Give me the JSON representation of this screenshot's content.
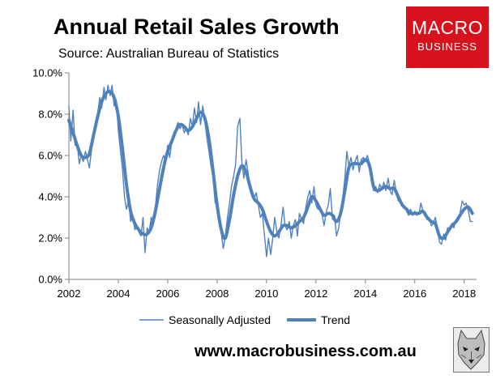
{
  "header": {
    "title": "Annual Retail Sales Growth",
    "subtitle": "Source: Australian Bureau of Statistics"
  },
  "logo": {
    "line1": "MACRO",
    "line2": "BUSINESS",
    "bg_color": "#d7121c"
  },
  "footer": {
    "website": "www.macrobusiness.com.au",
    "mascot_icon": "wolf-icon"
  },
  "chart_data": {
    "type": "line",
    "title": "Annual Retail Sales Growth",
    "subtitle": "Source: Australian Bureau of Statistics",
    "xlabel": "",
    "ylabel": "",
    "xlim": [
      2002,
      2018.5
    ],
    "ylim": [
      0,
      10
    ],
    "x_ticks": [
      2002,
      2004,
      2006,
      2008,
      2010,
      2012,
      2014,
      2016,
      2018
    ],
    "x_tick_labels": [
      "2002",
      "2004",
      "2006",
      "2008",
      "2010",
      "2012",
      "2014",
      "2016",
      "2018"
    ],
    "y_ticks": [
      0,
      2,
      4,
      6,
      8,
      10
    ],
    "y_tick_labels": [
      "0.0%",
      "2.0%",
      "4.0%",
      "6.0%",
      "8.0%",
      "10.0%"
    ],
    "grid": false,
    "legend_position": "bottom",
    "series": [
      {
        "name": "Seasonally Adjusted",
        "color": "#4f81bd",
        "style": "thin",
        "points": [
          [
            2002.0,
            8.4
          ],
          [
            2002.08,
            6.7
          ],
          [
            2002.17,
            8.2
          ],
          [
            2002.25,
            6.5
          ],
          [
            2002.33,
            6.6
          ],
          [
            2002.42,
            5.6
          ],
          [
            2002.5,
            6.0
          ],
          [
            2002.58,
            5.7
          ],
          [
            2002.67,
            6.2
          ],
          [
            2002.75,
            5.8
          ],
          [
            2002.83,
            5.4
          ],
          [
            2002.92,
            6.3
          ],
          [
            2003.0,
            7.0
          ],
          [
            2003.08,
            7.6
          ],
          [
            2003.17,
            8.1
          ],
          [
            2003.25,
            8.8
          ],
          [
            2003.33,
            8.3
          ],
          [
            2003.42,
            9.3
          ],
          [
            2003.5,
            8.7
          ],
          [
            2003.58,
            9.4
          ],
          [
            2003.67,
            8.9
          ],
          [
            2003.75,
            9.4
          ],
          [
            2003.83,
            8.4
          ],
          [
            2003.92,
            8.7
          ],
          [
            2004.0,
            7.2
          ],
          [
            2004.08,
            6.3
          ],
          [
            2004.17,
            5.3
          ],
          [
            2004.25,
            4.0
          ],
          [
            2004.33,
            3.4
          ],
          [
            2004.42,
            3.8
          ],
          [
            2004.5,
            2.8
          ],
          [
            2004.58,
            3.1
          ],
          [
            2004.67,
            2.4
          ],
          [
            2004.75,
            2.6
          ],
          [
            2004.83,
            2.3
          ],
          [
            2004.92,
            2.1
          ],
          [
            2005.0,
            3.0
          ],
          [
            2005.08,
            1.3
          ],
          [
            2005.17,
            2.5
          ],
          [
            2005.25,
            2.3
          ],
          [
            2005.33,
            3.0
          ],
          [
            2005.42,
            2.7
          ],
          [
            2005.5,
            3.5
          ],
          [
            2005.58,
            4.5
          ],
          [
            2005.67,
            5.3
          ],
          [
            2005.75,
            5.7
          ],
          [
            2005.83,
            6.0
          ],
          [
            2005.92,
            5.7
          ],
          [
            2006.0,
            6.5
          ],
          [
            2006.08,
            5.9
          ],
          [
            2006.17,
            6.7
          ],
          [
            2006.25,
            6.9
          ],
          [
            2006.33,
            7.3
          ],
          [
            2006.42,
            7.6
          ],
          [
            2006.5,
            7.3
          ],
          [
            2006.58,
            7.5
          ],
          [
            2006.67,
            7.1
          ],
          [
            2006.75,
            7.3
          ],
          [
            2006.83,
            7.0
          ],
          [
            2006.92,
            7.8
          ],
          [
            2007.0,
            7.4
          ],
          [
            2007.08,
            8.3
          ],
          [
            2007.17,
            7.6
          ],
          [
            2007.25,
            8.6
          ],
          [
            2007.33,
            7.5
          ],
          [
            2007.42,
            8.4
          ],
          [
            2007.5,
            7.7
          ],
          [
            2007.58,
            6.9
          ],
          [
            2007.67,
            6.2
          ],
          [
            2007.75,
            5.5
          ],
          [
            2007.83,
            5.0
          ],
          [
            2007.92,
            3.7
          ],
          [
            2008.0,
            3.6
          ],
          [
            2008.08,
            2.8
          ],
          [
            2008.17,
            2.2
          ],
          [
            2008.25,
            1.5
          ],
          [
            2008.33,
            2.1
          ],
          [
            2008.42,
            3.0
          ],
          [
            2008.5,
            3.7
          ],
          [
            2008.58,
            4.5
          ],
          [
            2008.67,
            5.0
          ],
          [
            2008.75,
            5.6
          ],
          [
            2008.83,
            7.4
          ],
          [
            2008.92,
            7.8
          ],
          [
            2009.0,
            5.7
          ],
          [
            2009.08,
            4.9
          ],
          [
            2009.17,
            5.8
          ],
          [
            2009.25,
            5.2
          ],
          [
            2009.33,
            4.5
          ],
          [
            2009.42,
            4.0
          ],
          [
            2009.5,
            3.9
          ],
          [
            2009.58,
            4.2
          ],
          [
            2009.67,
            3.6
          ],
          [
            2009.75,
            3.0
          ],
          [
            2009.83,
            3.2
          ],
          [
            2009.92,
            2.1
          ],
          [
            2010.0,
            1.1
          ],
          [
            2010.08,
            2.0
          ],
          [
            2010.17,
            1.2
          ],
          [
            2010.25,
            2.0
          ],
          [
            2010.33,
            3.0
          ],
          [
            2010.42,
            2.3
          ],
          [
            2010.5,
            2.0
          ],
          [
            2010.58,
            2.6
          ],
          [
            2010.67,
            3.5
          ],
          [
            2010.75,
            2.6
          ],
          [
            2010.83,
            2.4
          ],
          [
            2010.92,
            2.8
          ],
          [
            2011.0,
            2.0
          ],
          [
            2011.08,
            2.6
          ],
          [
            2011.17,
            2.9
          ],
          [
            2011.25,
            2.1
          ],
          [
            2011.33,
            3.2
          ],
          [
            2011.42,
            2.9
          ],
          [
            2011.5,
            2.7
          ],
          [
            2011.58,
            3.4
          ],
          [
            2011.67,
            4.0
          ],
          [
            2011.75,
            4.3
          ],
          [
            2011.83,
            3.7
          ],
          [
            2011.92,
            4.5
          ],
          [
            2012.0,
            3.6
          ],
          [
            2012.08,
            3.4
          ],
          [
            2012.17,
            3.5
          ],
          [
            2012.25,
            3.1
          ],
          [
            2012.33,
            2.6
          ],
          [
            2012.42,
            3.3
          ],
          [
            2012.5,
            3.6
          ],
          [
            2012.58,
            4.4
          ],
          [
            2012.67,
            2.9
          ],
          [
            2012.75,
            3.1
          ],
          [
            2012.83,
            2.1
          ],
          [
            2012.92,
            2.5
          ],
          [
            2013.0,
            3.2
          ],
          [
            2013.08,
            3.9
          ],
          [
            2013.17,
            4.9
          ],
          [
            2013.25,
            6.2
          ],
          [
            2013.33,
            5.5
          ],
          [
            2013.42,
            5.9
          ],
          [
            2013.5,
            5.3
          ],
          [
            2013.58,
            5.7
          ],
          [
            2013.67,
            6.0
          ],
          [
            2013.75,
            5.2
          ],
          [
            2013.83,
            5.8
          ],
          [
            2013.92,
            5.9
          ],
          [
            2014.0,
            5.7
          ],
          [
            2014.08,
            6.0
          ],
          [
            2014.17,
            5.6
          ],
          [
            2014.25,
            4.9
          ],
          [
            2014.33,
            4.3
          ],
          [
            2014.42,
            4.5
          ],
          [
            2014.5,
            4.2
          ],
          [
            2014.58,
            4.6
          ],
          [
            2014.67,
            4.4
          ],
          [
            2014.75,
            4.7
          ],
          [
            2014.83,
            4.3
          ],
          [
            2014.92,
            4.9
          ],
          [
            2015.0,
            4.3
          ],
          [
            2015.08,
            4.1
          ],
          [
            2015.17,
            4.8
          ],
          [
            2015.25,
            4.2
          ],
          [
            2015.33,
            3.8
          ],
          [
            2015.42,
            3.9
          ],
          [
            2015.5,
            3.6
          ],
          [
            2015.58,
            3.5
          ],
          [
            2015.67,
            3.3
          ],
          [
            2015.75,
            3.1
          ],
          [
            2015.83,
            3.4
          ],
          [
            2015.92,
            3.1
          ],
          [
            2016.0,
            3.3
          ],
          [
            2016.08,
            3.1
          ],
          [
            2016.17,
            3.2
          ],
          [
            2016.25,
            3.7
          ],
          [
            2016.33,
            3.3
          ],
          [
            2016.42,
            3.1
          ],
          [
            2016.5,
            2.9
          ],
          [
            2016.58,
            3.0
          ],
          [
            2016.67,
            2.6
          ],
          [
            2016.75,
            2.7
          ],
          [
            2016.83,
            3.0
          ],
          [
            2016.92,
            2.5
          ],
          [
            2017.0,
            1.8
          ],
          [
            2017.08,
            1.7
          ],
          [
            2017.17,
            2.2
          ],
          [
            2017.25,
            1.9
          ],
          [
            2017.33,
            2.5
          ],
          [
            2017.42,
            2.4
          ],
          [
            2017.5,
            2.7
          ],
          [
            2017.58,
            2.5
          ],
          [
            2017.67,
            2.9
          ],
          [
            2017.75,
            3.0
          ],
          [
            2017.83,
            3.2
          ],
          [
            2017.92,
            3.8
          ],
          [
            2018.0,
            3.6
          ],
          [
            2018.08,
            3.7
          ],
          [
            2018.17,
            3.3
          ],
          [
            2018.25,
            2.8
          ],
          [
            2018.33,
            2.8
          ]
        ]
      },
      {
        "name": "Trend",
        "color": "#4f81bd",
        "style": "thick",
        "points": [
          [
            2002.0,
            7.7
          ],
          [
            2002.17,
            7.1
          ],
          [
            2002.33,
            6.5
          ],
          [
            2002.5,
            6.0
          ],
          [
            2002.67,
            5.9
          ],
          [
            2002.83,
            6.1
          ],
          [
            2003.0,
            7.0
          ],
          [
            2003.17,
            7.9
          ],
          [
            2003.33,
            8.6
          ],
          [
            2003.5,
            9.0
          ],
          [
            2003.67,
            9.1
          ],
          [
            2003.83,
            8.8
          ],
          [
            2004.0,
            7.9
          ],
          [
            2004.17,
            6.3
          ],
          [
            2004.33,
            4.6
          ],
          [
            2004.5,
            3.3
          ],
          [
            2004.67,
            2.7
          ],
          [
            2004.83,
            2.4
          ],
          [
            2005.0,
            2.2
          ],
          [
            2005.17,
            2.2
          ],
          [
            2005.33,
            2.5
          ],
          [
            2005.5,
            3.3
          ],
          [
            2005.67,
            4.4
          ],
          [
            2005.83,
            5.4
          ],
          [
            2006.0,
            6.2
          ],
          [
            2006.17,
            6.7
          ],
          [
            2006.33,
            7.2
          ],
          [
            2006.5,
            7.5
          ],
          [
            2006.67,
            7.4
          ],
          [
            2006.83,
            7.2
          ],
          [
            2007.0,
            7.4
          ],
          [
            2007.17,
            7.8
          ],
          [
            2007.33,
            8.1
          ],
          [
            2007.5,
            7.8
          ],
          [
            2007.67,
            6.8
          ],
          [
            2007.83,
            5.3
          ],
          [
            2008.0,
            3.6
          ],
          [
            2008.17,
            2.4
          ],
          [
            2008.33,
            2.0
          ],
          [
            2008.5,
            2.9
          ],
          [
            2008.67,
            4.1
          ],
          [
            2008.83,
            5.0
          ],
          [
            2009.0,
            5.5
          ],
          [
            2009.17,
            5.2
          ],
          [
            2009.33,
            4.5
          ],
          [
            2009.5,
            3.9
          ],
          [
            2009.67,
            3.7
          ],
          [
            2009.83,
            3.4
          ],
          [
            2010.0,
            2.8
          ],
          [
            2010.17,
            2.3
          ],
          [
            2010.33,
            2.1
          ],
          [
            2010.5,
            2.3
          ],
          [
            2010.67,
            2.6
          ],
          [
            2010.83,
            2.6
          ],
          [
            2011.0,
            2.5
          ],
          [
            2011.17,
            2.6
          ],
          [
            2011.33,
            2.8
          ],
          [
            2011.5,
            3.0
          ],
          [
            2011.67,
            3.5
          ],
          [
            2011.83,
            4.0
          ],
          [
            2012.0,
            3.8
          ],
          [
            2012.17,
            3.4
          ],
          [
            2012.33,
            3.1
          ],
          [
            2012.5,
            3.2
          ],
          [
            2012.67,
            3.1
          ],
          [
            2012.83,
            2.8
          ],
          [
            2013.0,
            3.2
          ],
          [
            2013.17,
            4.3
          ],
          [
            2013.33,
            5.4
          ],
          [
            2013.5,
            5.6
          ],
          [
            2013.67,
            5.6
          ],
          [
            2013.83,
            5.6
          ],
          [
            2014.0,
            5.8
          ],
          [
            2014.17,
            5.5
          ],
          [
            2014.33,
            4.5
          ],
          [
            2014.5,
            4.3
          ],
          [
            2014.67,
            4.4
          ],
          [
            2014.83,
            4.5
          ],
          [
            2015.0,
            4.4
          ],
          [
            2015.17,
            4.4
          ],
          [
            2015.33,
            4.0
          ],
          [
            2015.5,
            3.6
          ],
          [
            2015.67,
            3.4
          ],
          [
            2015.83,
            3.2
          ],
          [
            2016.0,
            3.2
          ],
          [
            2016.17,
            3.2
          ],
          [
            2016.33,
            3.3
          ],
          [
            2016.5,
            3.0
          ],
          [
            2016.67,
            2.8
          ],
          [
            2016.83,
            2.7
          ],
          [
            2017.0,
            2.1
          ],
          [
            2017.17,
            2.0
          ],
          [
            2017.33,
            2.3
          ],
          [
            2017.5,
            2.6
          ],
          [
            2017.67,
            2.8
          ],
          [
            2017.83,
            3.1
          ],
          [
            2018.0,
            3.4
          ],
          [
            2018.17,
            3.5
          ],
          [
            2018.33,
            3.2
          ]
        ]
      }
    ]
  }
}
